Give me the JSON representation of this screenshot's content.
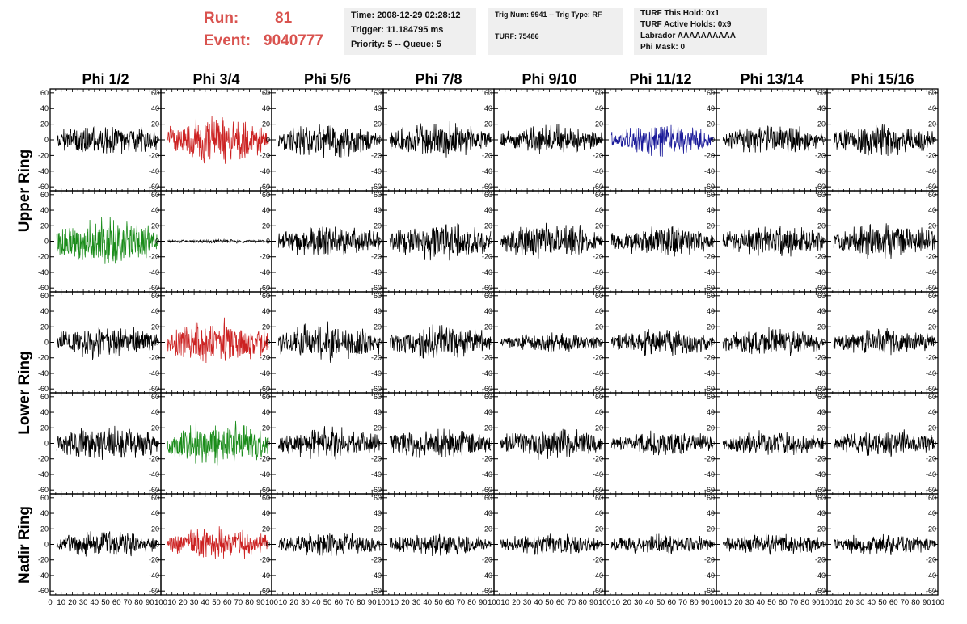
{
  "header": {
    "run_label": "Run:",
    "run_value": "81",
    "event_label": "Event:",
    "event_value": "9040777",
    "time": "Time: 2008-12-29 02:28:12",
    "trigger": "Trigger: 11.184795 ms",
    "priority": "Priority: 5 -- Queue: 5",
    "trig_num": "Trig Num: 9941 -- Trig Type: RF",
    "turf": "TURF: 75486",
    "turf_hold": "TURF This Hold: 0x1",
    "turf_active": "TURF Active Holds: 0x9",
    "labrador": "Labrador AAAAAAAAAA",
    "phi_mask": "Phi Mask: 0"
  },
  "colors": {
    "run_text": "#d9534f",
    "trace_default": "#000000",
    "trace_red": "#cc2222",
    "trace_green": "#1a8c1a",
    "trace_blue": "#1a1a99",
    "panel_bg": "#efefef"
  },
  "chart_data": {
    "type": "line",
    "column_labels": [
      "Phi 1/2",
      "Phi 3/4",
      "Phi 5/6",
      "Phi 7/8",
      "Phi 9/10",
      "Phi 11/12",
      "Phi 13/14",
      "Phi 15/16"
    ],
    "row_labels": [
      "Upper Ring",
      "Lower Ring",
      "Nadir Ring"
    ],
    "ylim": [
      -65,
      65
    ],
    "yticks": [
      -60,
      -40,
      -20,
      0,
      20,
      40,
      60
    ],
    "xlim": [
      0,
      100
    ],
    "xticks": [
      0,
      10,
      20,
      30,
      40,
      50,
      60,
      70,
      80,
      90,
      100
    ],
    "x_tick_labels": [
      "0",
      "10",
      "20",
      "30",
      "40",
      "50",
      "60",
      "70",
      "80",
      "90",
      "100"
    ],
    "grid": false,
    "panels": [
      [
        "black",
        "red",
        "black",
        "black",
        "black",
        "blue",
        "black",
        "black"
      ],
      [
        "green",
        "black",
        "black",
        "black",
        "black",
        "black",
        "black",
        "black"
      ],
      [
        "black",
        "red",
        "black",
        "black",
        "black",
        "black",
        "black",
        "black"
      ],
      [
        "black",
        "green",
        "black",
        "black",
        "black",
        "black",
        "black",
        "black"
      ],
      [
        "black",
        "red",
        "black",
        "black",
        "black",
        "black",
        "black",
        "black"
      ]
    ],
    "amplitudes": [
      [
        17,
        24,
        18,
        18,
        15,
        17,
        15,
        16
      ],
      [
        24,
        2,
        17,
        20,
        19,
        16,
        17,
        20
      ],
      [
        17,
        24,
        20,
        18,
        10,
        14,
        15,
        14
      ],
      [
        18,
        24,
        17,
        16,
        16,
        13,
        14,
        14
      ],
      [
        14,
        17,
        13,
        13,
        11,
        11,
        12,
        11
      ]
    ]
  }
}
